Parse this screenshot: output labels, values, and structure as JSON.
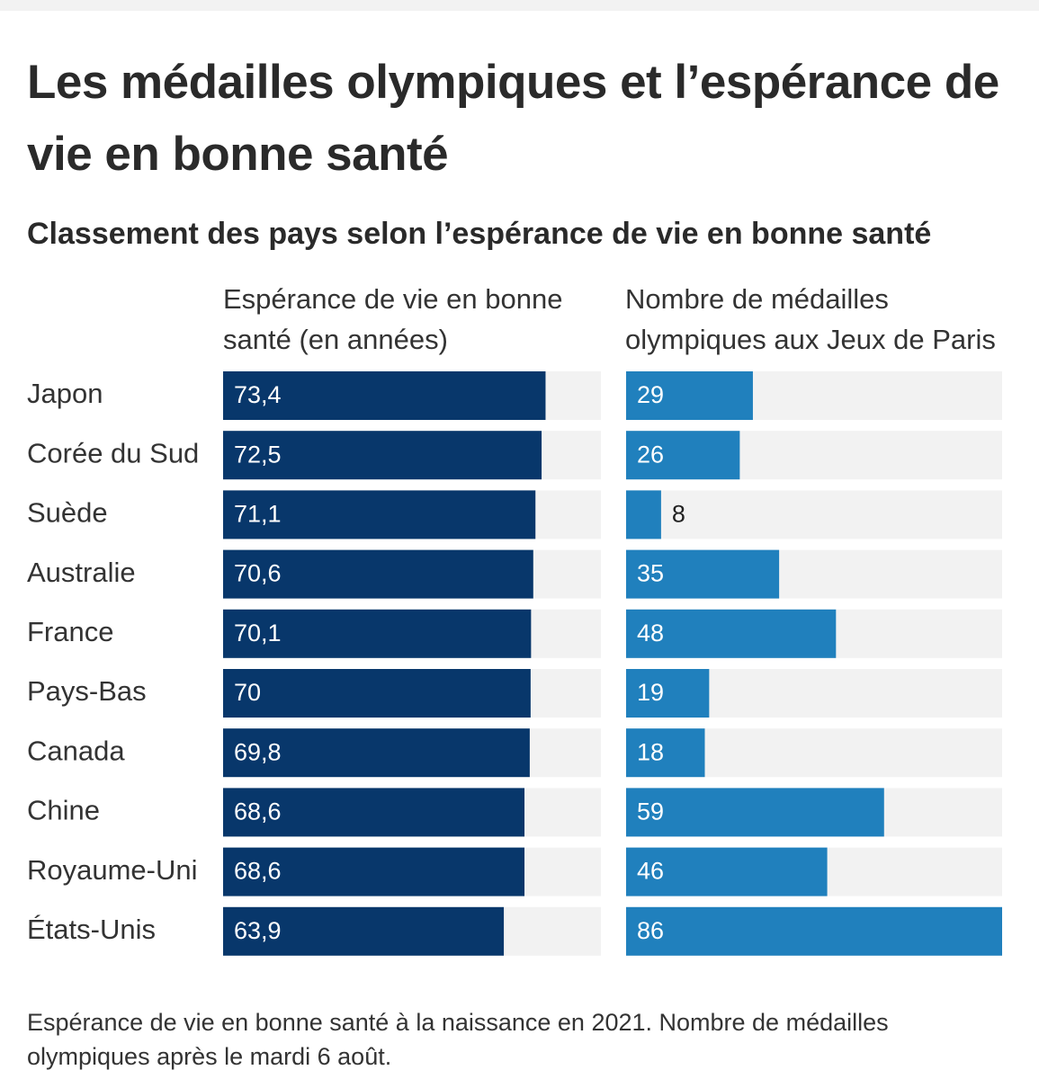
{
  "title": "Les médailles olympiques et l’espérance de vie en bonne santé",
  "subtitle": "Classement des pays selon l’espérance de vie en bonne santé",
  "footnote": "Espérance de vie en bonne santé à la naissance en 2021. Nombre de médailles olympiques après le mardi 6 août.",
  "colors": {
    "life_bar": "#08376b",
    "medal_bar": "#2080bd",
    "track": "#f2f2f2",
    "text_inside": "#ffffff",
    "text_outside": "#222222"
  },
  "chart_data": [
    {
      "type": "bar",
      "orientation": "horizontal",
      "xlabel": "Espérance de vie en bonne santé (en années)",
      "categories": [
        "Japon",
        "Corée du Sud",
        "Suède",
        "Australie",
        "France",
        "Pays-Bas",
        "Canada",
        "Chine",
        "Royaume-Uni",
        "États-Unis"
      ],
      "values": [
        73.4,
        72.5,
        71.1,
        70.6,
        70.1,
        70,
        69.8,
        68.6,
        68.6,
        63.9
      ],
      "value_labels": [
        "73,4",
        "72,5",
        "71,1",
        "70,6",
        "70,1",
        "70",
        "69,8",
        "68,6",
        "68,6",
        "63,9"
      ],
      "xlim": [
        0,
        86
      ],
      "color": "#08376b",
      "grid": false
    },
    {
      "type": "bar",
      "orientation": "horizontal",
      "xlabel": "Nombre de médailles olympiques aux Jeux de Paris",
      "categories": [
        "Japon",
        "Corée du Sud",
        "Suède",
        "Australie",
        "France",
        "Pays-Bas",
        "Canada",
        "Chine",
        "Royaume-Uni",
        "États-Unis"
      ],
      "values": [
        29,
        26,
        8,
        35,
        48,
        19,
        18,
        59,
        46,
        86
      ],
      "value_labels": [
        "29",
        "26",
        "8",
        "35",
        "48",
        "19",
        "18",
        "59",
        "46",
        "86"
      ],
      "xlim": [
        0,
        86
      ],
      "color": "#2080bd",
      "grid": false
    }
  ]
}
